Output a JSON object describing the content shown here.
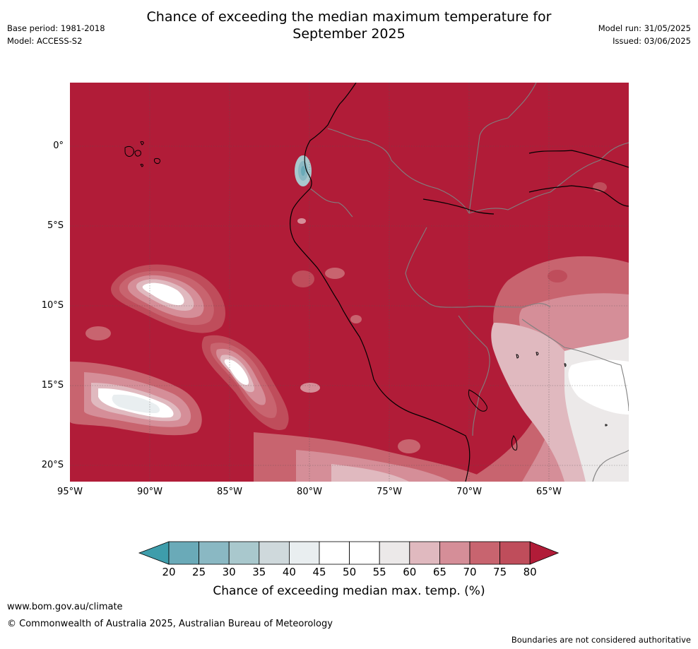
{
  "title_line1": "Chance of exceeding the median maximum temperature for",
  "title_line2": "September 2025",
  "base_period": "Base period: 1981-2018",
  "model": "Model: ACCESS-S2",
  "model_run": "Model run: 31/05/2025",
  "issued": "Issued: 03/06/2025",
  "lat_labels": [
    "0°",
    "5°S",
    "10°S",
    "15°S",
    "20°S"
  ],
  "lon_labels": [
    "95°W",
    "90°W",
    "85°W",
    "80°W",
    "75°W",
    "70°W",
    "65°W"
  ],
  "colorbar": {
    "ticks": [
      "20",
      "25",
      "30",
      "35",
      "40",
      "45",
      "50",
      "55",
      "60",
      "65",
      "70",
      "75",
      "80"
    ],
    "colors": [
      "#3e9dab",
      "#6aaab8",
      "#8ab8c3",
      "#a9c8cd",
      "#cfd9dc",
      "#e9eef0",
      "#ffffff",
      "#ffffff",
      "#ece9e9",
      "#e0b9bf",
      "#d58e98",
      "#c8646f",
      "#bf4d5b",
      "#b11c38"
    ],
    "label": "Chance of exceeding median max. temp. (%)"
  },
  "url": "www.bom.gov.au/climate",
  "copyright": "© Commonwealth of Australia 2025, Australian Bureau of Meteorology",
  "disclaimer": "Boundaries are not considered authoritative"
}
